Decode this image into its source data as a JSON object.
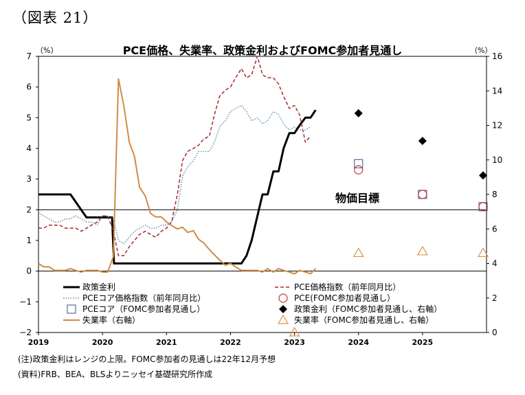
{
  "figure_label": "（図表 21）",
  "notes": {
    "note": "(注)政策金利はレンジの上限。FOMC参加者の見通しは22年12月予想",
    "source": "(資料)FRB、BEA、BLSよりニッセイ基礎研究所作成"
  },
  "chart_data": {
    "type": "line",
    "title": "PCE価格、失業率、政策金利およびFOMC参加者見通し",
    "left_axis": {
      "unit": "（%）",
      "min": -2,
      "max": 7,
      "ticks": [
        -2,
        -1,
        0,
        1,
        2,
        3,
        4,
        5,
        6,
        7
      ]
    },
    "right_axis": {
      "unit": "（%）",
      "min": 0,
      "max": 16,
      "ticks": [
        0,
        2,
        4,
        6,
        8,
        10,
        12,
        14,
        16
      ]
    },
    "x_axis": {
      "labels": [
        "2019",
        "2020",
        "2021",
        "2022",
        "2023",
        "2024",
        "2025"
      ],
      "label_positions": [
        2019,
        2020,
        2021,
        2022,
        2023,
        2024,
        2025
      ],
      "range": [
        2019,
        2026
      ]
    },
    "reference_line": {
      "label": "物価目標",
      "value": 2
    },
    "colors": {
      "policy": "#000000",
      "pce": "#a52a2a",
      "core": "#4f7fa8",
      "unemployment": "#d08a44",
      "marker_pce": "#c0392b",
      "marker_core": "#4f6f9f",
      "marker_unemp": "#d9954a"
    },
    "series": [
      {
        "name": "政策金利",
        "axis": "left",
        "style": "solid-thick",
        "points": [
          [
            2019.0,
            2.5
          ],
          [
            2019.5,
            2.5
          ],
          [
            2019.75,
            1.75
          ],
          [
            2020.15,
            1.75
          ],
          [
            2020.18,
            0.25
          ],
          [
            2022.17,
            0.25
          ],
          [
            2022.25,
            0.5
          ],
          [
            2022.33,
            1.0
          ],
          [
            2022.5,
            2.5
          ],
          [
            2022.58,
            2.5
          ],
          [
            2022.67,
            3.25
          ],
          [
            2022.75,
            3.25
          ],
          [
            2022.83,
            4.0
          ],
          [
            2022.92,
            4.5
          ],
          [
            2023.0,
            4.5
          ],
          [
            2023.08,
            4.75
          ],
          [
            2023.17,
            5.0
          ],
          [
            2023.25,
            5.0
          ],
          [
            2023.33,
            5.25
          ]
        ]
      },
      {
        "name": "PCE価格指数（前年同月比）",
        "axis": "left",
        "style": "dashed",
        "points": [
          [
            2019.0,
            1.4
          ],
          [
            2019.08,
            1.4
          ],
          [
            2019.17,
            1.5
          ],
          [
            2019.25,
            1.5
          ],
          [
            2019.33,
            1.5
          ],
          [
            2019.42,
            1.4
          ],
          [
            2019.5,
            1.4
          ],
          [
            2019.58,
            1.4
          ],
          [
            2019.67,
            1.3
          ],
          [
            2019.75,
            1.4
          ],
          [
            2019.83,
            1.5
          ],
          [
            2019.92,
            1.6
          ],
          [
            2020.0,
            1.8
          ],
          [
            2020.08,
            1.8
          ],
          [
            2020.17,
            1.3
          ],
          [
            2020.25,
            0.5
          ],
          [
            2020.33,
            0.5
          ],
          [
            2020.42,
            0.8
          ],
          [
            2020.5,
            1.0
          ],
          [
            2020.58,
            1.2
          ],
          [
            2020.67,
            1.3
          ],
          [
            2020.75,
            1.2
          ],
          [
            2020.83,
            1.1
          ],
          [
            2020.92,
            1.3
          ],
          [
            2021.0,
            1.4
          ],
          [
            2021.08,
            1.6
          ],
          [
            2021.17,
            2.5
          ],
          [
            2021.25,
            3.6
          ],
          [
            2021.33,
            3.9
          ],
          [
            2021.42,
            4.0
          ],
          [
            2021.5,
            4.1
          ],
          [
            2021.58,
            4.3
          ],
          [
            2021.67,
            4.4
          ],
          [
            2021.75,
            5.1
          ],
          [
            2021.83,
            5.7
          ],
          [
            2021.92,
            5.9
          ],
          [
            2022.0,
            6.0
          ],
          [
            2022.08,
            6.3
          ],
          [
            2022.17,
            6.6
          ],
          [
            2022.25,
            6.3
          ],
          [
            2022.33,
            6.4
          ],
          [
            2022.42,
            7.0
          ],
          [
            2022.5,
            6.4
          ],
          [
            2022.58,
            6.3
          ],
          [
            2022.67,
            6.3
          ],
          [
            2022.75,
            6.1
          ],
          [
            2022.83,
            5.7
          ],
          [
            2022.92,
            5.3
          ],
          [
            2023.0,
            5.4
          ],
          [
            2023.08,
            5.1
          ],
          [
            2023.17,
            4.2
          ],
          [
            2023.25,
            4.4
          ]
        ]
      },
      {
        "name": "PCEコア価格指数（前年同月比）",
        "axis": "left",
        "style": "dotted",
        "points": [
          [
            2019.0,
            1.9
          ],
          [
            2019.08,
            1.8
          ],
          [
            2019.17,
            1.7
          ],
          [
            2019.25,
            1.6
          ],
          [
            2019.33,
            1.6
          ],
          [
            2019.42,
            1.7
          ],
          [
            2019.5,
            1.7
          ],
          [
            2019.58,
            1.8
          ],
          [
            2019.67,
            1.7
          ],
          [
            2019.75,
            1.6
          ],
          [
            2019.83,
            1.6
          ],
          [
            2019.92,
            1.5
          ],
          [
            2020.0,
            1.8
          ],
          [
            2020.08,
            1.8
          ],
          [
            2020.17,
            1.7
          ],
          [
            2020.25,
            1.0
          ],
          [
            2020.33,
            0.9
          ],
          [
            2020.42,
            1.1
          ],
          [
            2020.5,
            1.3
          ],
          [
            2020.58,
            1.4
          ],
          [
            2020.67,
            1.5
          ],
          [
            2020.75,
            1.4
          ],
          [
            2020.83,
            1.4
          ],
          [
            2020.92,
            1.5
          ],
          [
            2021.0,
            1.5
          ],
          [
            2021.08,
            1.6
          ],
          [
            2021.17,
            2.0
          ],
          [
            2021.25,
            3.1
          ],
          [
            2021.33,
            3.4
          ],
          [
            2021.42,
            3.6
          ],
          [
            2021.5,
            3.9
          ],
          [
            2021.58,
            3.9
          ],
          [
            2021.67,
            3.9
          ],
          [
            2021.75,
            4.2
          ],
          [
            2021.83,
            4.7
          ],
          [
            2021.92,
            4.9
          ],
          [
            2022.0,
            5.2
          ],
          [
            2022.08,
            5.3
          ],
          [
            2022.17,
            5.4
          ],
          [
            2022.25,
            5.2
          ],
          [
            2022.33,
            4.9
          ],
          [
            2022.42,
            5.0
          ],
          [
            2022.5,
            4.8
          ],
          [
            2022.58,
            4.9
          ],
          [
            2022.67,
            5.2
          ],
          [
            2022.75,
            5.1
          ],
          [
            2022.83,
            4.8
          ],
          [
            2022.92,
            4.6
          ],
          [
            2023.0,
            4.7
          ],
          [
            2023.08,
            4.6
          ],
          [
            2023.17,
            4.6
          ],
          [
            2023.25,
            4.7
          ]
        ]
      },
      {
        "name": "失業率（右軸）",
        "axis": "right",
        "style": "solid",
        "points": [
          [
            2019.0,
            4.0
          ],
          [
            2019.08,
            3.8
          ],
          [
            2019.17,
            3.8
          ],
          [
            2019.25,
            3.6
          ],
          [
            2019.33,
            3.6
          ],
          [
            2019.42,
            3.6
          ],
          [
            2019.5,
            3.7
          ],
          [
            2019.58,
            3.6
          ],
          [
            2019.67,
            3.5
          ],
          [
            2019.75,
            3.6
          ],
          [
            2019.83,
            3.6
          ],
          [
            2019.92,
            3.6
          ],
          [
            2020.0,
            3.5
          ],
          [
            2020.08,
            3.5
          ],
          [
            2020.17,
            4.4
          ],
          [
            2020.25,
            14.7
          ],
          [
            2020.33,
            13.2
          ],
          [
            2020.42,
            11.0
          ],
          [
            2020.5,
            10.2
          ],
          [
            2020.58,
            8.4
          ],
          [
            2020.67,
            7.9
          ],
          [
            2020.75,
            6.9
          ],
          [
            2020.83,
            6.7
          ],
          [
            2020.92,
            6.7
          ],
          [
            2021.0,
            6.4
          ],
          [
            2021.08,
            6.2
          ],
          [
            2021.17,
            6.0
          ],
          [
            2021.25,
            6.1
          ],
          [
            2021.33,
            5.8
          ],
          [
            2021.42,
            5.9
          ],
          [
            2021.5,
            5.4
          ],
          [
            2021.58,
            5.2
          ],
          [
            2021.67,
            4.8
          ],
          [
            2021.75,
            4.5
          ],
          [
            2021.83,
            4.2
          ],
          [
            2021.92,
            3.9
          ],
          [
            2022.0,
            4.0
          ],
          [
            2022.08,
            3.8
          ],
          [
            2022.17,
            3.6
          ],
          [
            2022.25,
            3.6
          ],
          [
            2022.33,
            3.6
          ],
          [
            2022.42,
            3.6
          ],
          [
            2022.5,
            3.5
          ],
          [
            2022.58,
            3.7
          ],
          [
            2022.67,
            3.5
          ],
          [
            2022.75,
            3.7
          ],
          [
            2022.83,
            3.6
          ],
          [
            2022.92,
            3.5
          ],
          [
            2023.0,
            3.4
          ],
          [
            2023.08,
            3.6
          ],
          [
            2023.17,
            3.5
          ],
          [
            2023.25,
            3.4
          ],
          [
            2023.33,
            3.7
          ]
        ]
      }
    ],
    "markers": [
      {
        "name": "PCEコア（FOMC参加者見通し）",
        "symbol": "open-square",
        "axis": "left",
        "points": [
          [
            2024,
            3.5
          ],
          [
            2025,
            2.5
          ],
          [
            2026,
            2.1
          ]
        ]
      },
      {
        "name": "PCE(FOMC参加者見通し）",
        "symbol": "open-circle",
        "axis": "left",
        "points": [
          [
            2024,
            3.3
          ],
          [
            2025,
            2.5
          ],
          [
            2026,
            2.1
          ]
        ]
      },
      {
        "name": "政策金利（FOMC参加者見通し、右軸）",
        "symbol": "filled-diamond",
        "axis": "right",
        "points": [
          [
            2024,
            12.7
          ],
          [
            2025,
            11.1
          ],
          [
            2026,
            9.1
          ]
        ]
      },
      {
        "name": "失業率（FOMC参加者見通し、右軸）",
        "symbol": "open-triangle",
        "axis": "right",
        "points": [
          [
            2023,
            0
          ],
          [
            2024,
            4.6
          ],
          [
            2025,
            4.7
          ],
          [
            2026,
            4.6
          ]
        ]
      }
    ],
    "legend": {
      "placement": "bottom",
      "entries": [
        {
          "label": "政策金利",
          "key": "policy_line"
        },
        {
          "label": "PCE価格指数（前年同月比）",
          "key": "pce_line"
        },
        {
          "label": "PCEコア価格指数（前年同月比）",
          "key": "core_line"
        },
        {
          "label": "PCE(FOMC参加者見通し）",
          "key": "circle"
        },
        {
          "label": "PCEコア（FOMC参加者見通し）",
          "key": "square"
        },
        {
          "label": "政策金利（FOMC参加者見通し、右軸）",
          "key": "diamond"
        },
        {
          "label": "失業率（右軸）",
          "key": "unemp_line"
        },
        {
          "label": "失業率（FOMC参加者見通し、右軸）",
          "key": "triangle"
        }
      ]
    }
  }
}
